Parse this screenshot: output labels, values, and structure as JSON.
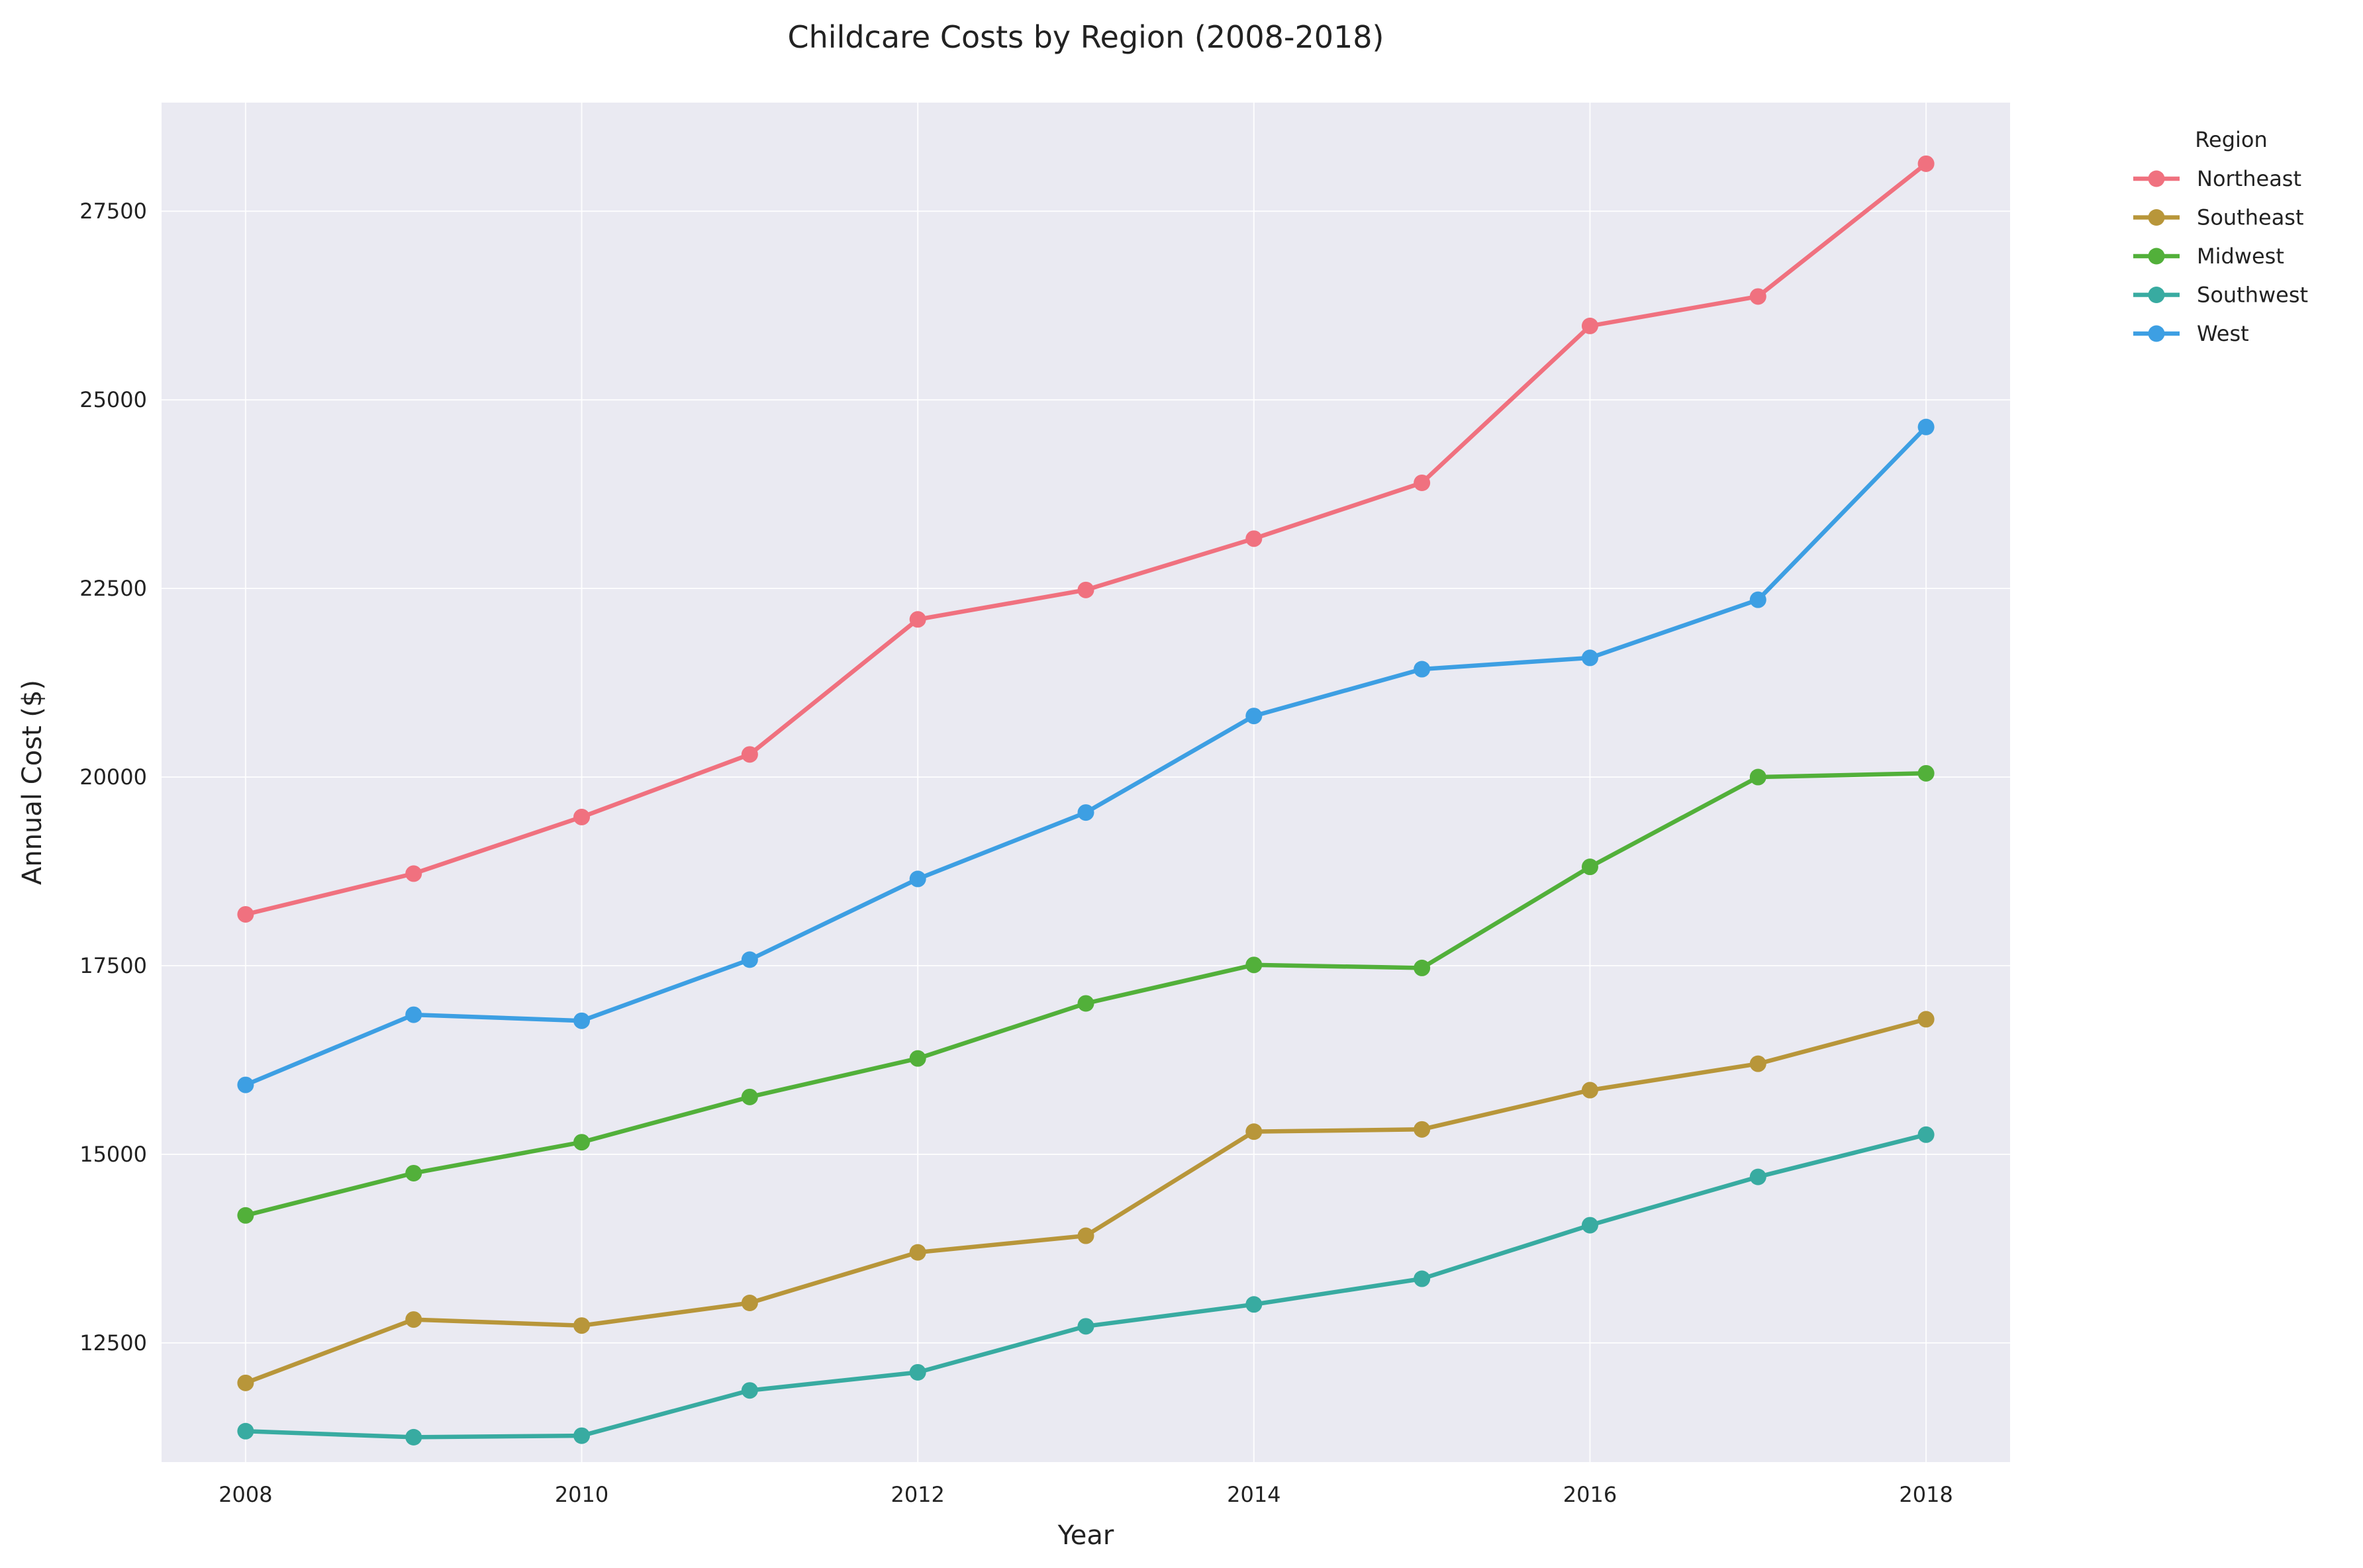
{
  "chart_data": {
    "type": "line",
    "title": "Childcare Costs by Region (2008-2018)",
    "xlabel": "Year",
    "ylabel": "Annual Cost ($)",
    "x": [
      2008,
      2009,
      2010,
      2011,
      2012,
      2013,
      2014,
      2015,
      2016,
      2017,
      2018
    ],
    "xlim": [
      2007.5,
      2018.5
    ],
    "ylim": [
      10920,
      28940
    ],
    "x_ticks": [
      2008,
      2010,
      2012,
      2014,
      2016,
      2018
    ],
    "y_ticks": [
      12500,
      15000,
      17500,
      20000,
      22500,
      25000,
      27500
    ],
    "grid": true,
    "legend": {
      "title": "Region",
      "position": "outside-top-right"
    },
    "series": [
      {
        "name": "Northeast",
        "color": "#f0717f",
        "values": [
          18180,
          18720,
          19470,
          20300,
          22090,
          22480,
          23160,
          23900,
          25980,
          26370,
          28130
        ]
      },
      {
        "name": "Southeast",
        "color": "#b8963a",
        "values": [
          11970,
          12810,
          12730,
          13030,
          13700,
          13920,
          15300,
          15330,
          15850,
          16200,
          16790
        ]
      },
      {
        "name": "Midwest",
        "color": "#52b03a",
        "values": [
          14190,
          14750,
          15160,
          15760,
          16270,
          17000,
          17510,
          17470,
          18810,
          20000,
          20050
        ]
      },
      {
        "name": "Southwest",
        "color": "#38aba1",
        "values": [
          11330,
          11250,
          11270,
          11870,
          12110,
          12720,
          13010,
          13350,
          14060,
          14700,
          15260
        ]
      },
      {
        "name": "West",
        "color": "#3d9fe3",
        "values": [
          15920,
          16850,
          16770,
          17580,
          18650,
          19530,
          20810,
          21430,
          21580,
          22350,
          24640
        ]
      }
    ]
  }
}
